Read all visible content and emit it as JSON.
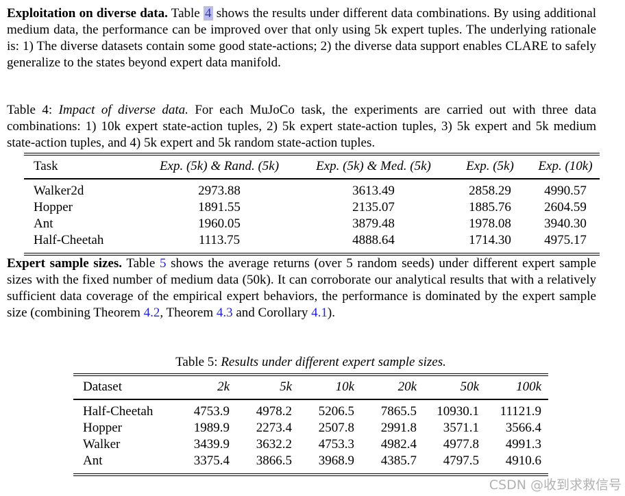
{
  "colors": {
    "text": "#000000",
    "link": "#2525d8",
    "link_highlight_bg": "#b9bde7",
    "watermark": "#b2b2b2",
    "background": "#ffffff"
  },
  "paragraph1": {
    "lead": "Exploitation on diverse data.",
    "before_link": " Table ",
    "link": "4",
    "after_link": " shows the results under different data combinations. By using additional medium data, the performance can be improved over that only using 5k expert tuples. The underlying rationale is: 1) The diverse datasets contain some good state-actions; 2) the diverse data support enables CLARE to safely generalize to the states beyond expert data manifold."
  },
  "table4": {
    "caption_prefix": "Table 4: ",
    "caption_italic": "Impact of diverse data.",
    "caption_rest": " For each MuJoCo task, the experiments are carried out with three data combinations: 1) 10k expert state-action tuples, 2) 5k expert state-action tuples, 3) 5k expert and 5k medium state-action tuples, and 4) 5k expert and 5k random state-action tuples.",
    "headers": [
      "Task",
      "Exp. (5k) & Rand. (5k)",
      "Exp. (5k) & Med. (5k)",
      "Exp. (5k)",
      "Exp. (10k)"
    ],
    "rows": [
      [
        "Walker2d",
        "2973.88",
        "3613.49",
        "2858.29",
        "4990.57"
      ],
      [
        "Hopper",
        "1891.55",
        "2135.07",
        "1885.76",
        "2604.59"
      ],
      [
        "Ant",
        "1960.05",
        "3879.48",
        "1978.08",
        "3940.30"
      ],
      [
        "Half-Cheetah",
        "1113.75",
        "4888.64",
        "1714.30",
        "4975.17"
      ]
    ]
  },
  "paragraph2": {
    "lead": "Expert sample sizes.",
    "t1": " Table ",
    "link_table5": "5",
    "t2": " shows the average returns (over 5 random seeds) under different expert sample sizes with the fixed number of medium data (50k). It can corroborate our analytical results that with a relatively sufficient data coverage of the empirical expert behaviors, the performance is dominated by the expert sample size (combining Theorem ",
    "link_thm42": "4.2",
    "t3": ", Theorem ",
    "link_thm43": "4.3",
    "t4": " and Corollary ",
    "link_cor41": "4.1",
    "t5": ")."
  },
  "table5": {
    "caption_prefix": "Table 5: ",
    "caption_italic": "Results under different expert sample sizes.",
    "headers": [
      "Dataset",
      "2k",
      "5k",
      "10k",
      "20k",
      "50k",
      "100k"
    ],
    "rows": [
      [
        "Half-Cheetah",
        "4753.9",
        "4978.2",
        "5206.5",
        "7865.5",
        "10930.1",
        "11121.9"
      ],
      [
        "Hopper",
        "1989.9",
        "2273.4",
        "2507.8",
        "2991.8",
        "3571.1",
        "3566.4"
      ],
      [
        "Walker",
        "3439.9",
        "3632.2",
        "4753.3",
        "4982.4",
        "4977.8",
        "4991.3"
      ],
      [
        "Ant",
        "3375.4",
        "3866.5",
        "3968.9",
        "4385.7",
        "4797.5",
        "4910.6"
      ]
    ]
  },
  "watermark": {
    "text": "CSDN @收到求救信号"
  }
}
